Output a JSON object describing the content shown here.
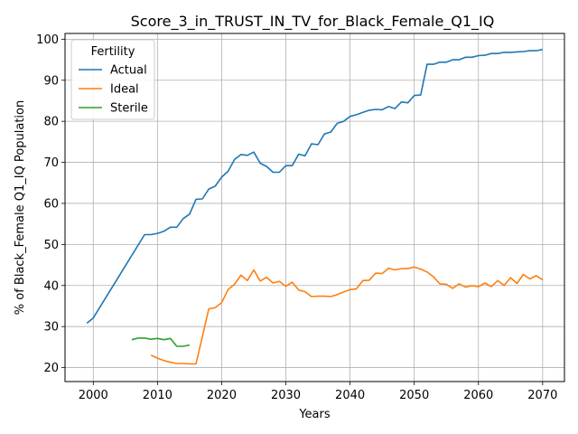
{
  "chart_data": {
    "type": "line",
    "title": "Score_3_in_TRUST_IN_TV_for_Black_Female_Q1_IQ",
    "xlabel": "Years",
    "ylabel": "% of Black_Female Q1_IQ Population",
    "xlim": [
      1995.6,
      2073.4
    ],
    "ylim": [
      16.6,
      101.4
    ],
    "xticks": [
      2000,
      2010,
      2020,
      2030,
      2040,
      2050,
      2060,
      2070
    ],
    "yticks": [
      20,
      30,
      40,
      50,
      60,
      70,
      80,
      90,
      100
    ],
    "grid": true,
    "legend": {
      "title": "Fertility",
      "position": "top-left"
    },
    "series": [
      {
        "name": "Actual",
        "color": "#1f77b4",
        "x": [
          1999,
          2000,
          2008,
          2009,
          2010,
          2011,
          2012,
          2013,
          2014,
          2015,
          2016,
          2017,
          2018,
          2019,
          2020,
          2021,
          2022,
          2023,
          2024,
          2025,
          2026,
          2027,
          2028,
          2029,
          2030,
          2031,
          2032,
          2033,
          2034,
          2035,
          2036,
          2037,
          2038,
          2039,
          2040,
          2041,
          2042,
          2043,
          2044,
          2045,
          2046,
          2047,
          2048,
          2049,
          2050,
          2051,
          2052,
          2053,
          2054,
          2055,
          2056,
          2057,
          2058,
          2059,
          2060,
          2061,
          2062,
          2063,
          2064,
          2065,
          2066,
          2067,
          2068,
          2069,
          2070
        ],
        "y": [
          30.8,
          32.1,
          52.4,
          52.4,
          52.7,
          53.2,
          54.2,
          54.2,
          56.3,
          57.4,
          61.0,
          61.1,
          63.5,
          64.2,
          66.4,
          67.8,
          70.7,
          71.9,
          71.7,
          72.5,
          69.8,
          69.0,
          67.6,
          67.6,
          69.2,
          69.2,
          72.0,
          71.6,
          74.5,
          74.3,
          76.9,
          77.4,
          79.5,
          80.0,
          81.2,
          81.6,
          82.2,
          82.7,
          82.9,
          82.8,
          83.6,
          83.1,
          84.7,
          84.5,
          86.3,
          86.4,
          93.9,
          93.9,
          94.4,
          94.4,
          95.0,
          95.0,
          95.6,
          95.6,
          96.0,
          96.1,
          96.5,
          96.5,
          96.8,
          96.8,
          96.9,
          97.0,
          97.2,
          97.2,
          97.5
        ]
      },
      {
        "name": "Ideal",
        "color": "#ff7f0e",
        "x": [
          2009,
          2010,
          2011,
          2012,
          2013,
          2014,
          2015,
          2016,
          2017,
          2018,
          2019,
          2020,
          2021,
          2022,
          2023,
          2024,
          2025,
          2026,
          2027,
          2028,
          2029,
          2030,
          2031,
          2032,
          2033,
          2034,
          2035,
          2036,
          2037,
          2038,
          2039,
          2040,
          2041,
          2042,
          2043,
          2044,
          2045,
          2046,
          2047,
          2048,
          2049,
          2050,
          2051,
          2052,
          2053,
          2054,
          2055,
          2056,
          2057,
          2058,
          2059,
          2060,
          2061,
          2062,
          2063,
          2064,
          2065,
          2066,
          2067,
          2068,
          2069,
          2070
        ],
        "y": [
          23.0,
          22.3,
          21.7,
          21.3,
          21.0,
          21.0,
          20.9,
          20.9,
          27.6,
          34.3,
          34.6,
          35.8,
          39.0,
          40.3,
          42.5,
          41.2,
          43.8,
          41.1,
          42.0,
          40.6,
          41.0,
          39.8,
          40.8,
          38.9,
          38.5,
          37.3,
          37.4,
          37.4,
          37.3,
          37.8,
          38.4,
          39.0,
          39.2,
          41.2,
          41.3,
          43.0,
          42.9,
          44.2,
          43.8,
          44.1,
          44.1,
          44.5,
          44.0,
          43.3,
          42.1,
          40.4,
          40.3,
          39.3,
          40.4,
          39.6,
          40.0,
          39.7,
          40.6,
          39.7,
          41.2,
          40.0,
          41.9,
          40.5,
          42.7,
          41.6,
          42.4,
          41.4
        ]
      },
      {
        "name": "Sterile",
        "color": "#2ca02c",
        "x": [
          2006,
          2007,
          2008,
          2009,
          2010,
          2011,
          2012,
          2013,
          2014,
          2015
        ],
        "y": [
          26.8,
          27.2,
          27.2,
          26.9,
          27.1,
          26.8,
          27.1,
          25.2,
          25.2,
          25.5
        ]
      }
    ]
  }
}
